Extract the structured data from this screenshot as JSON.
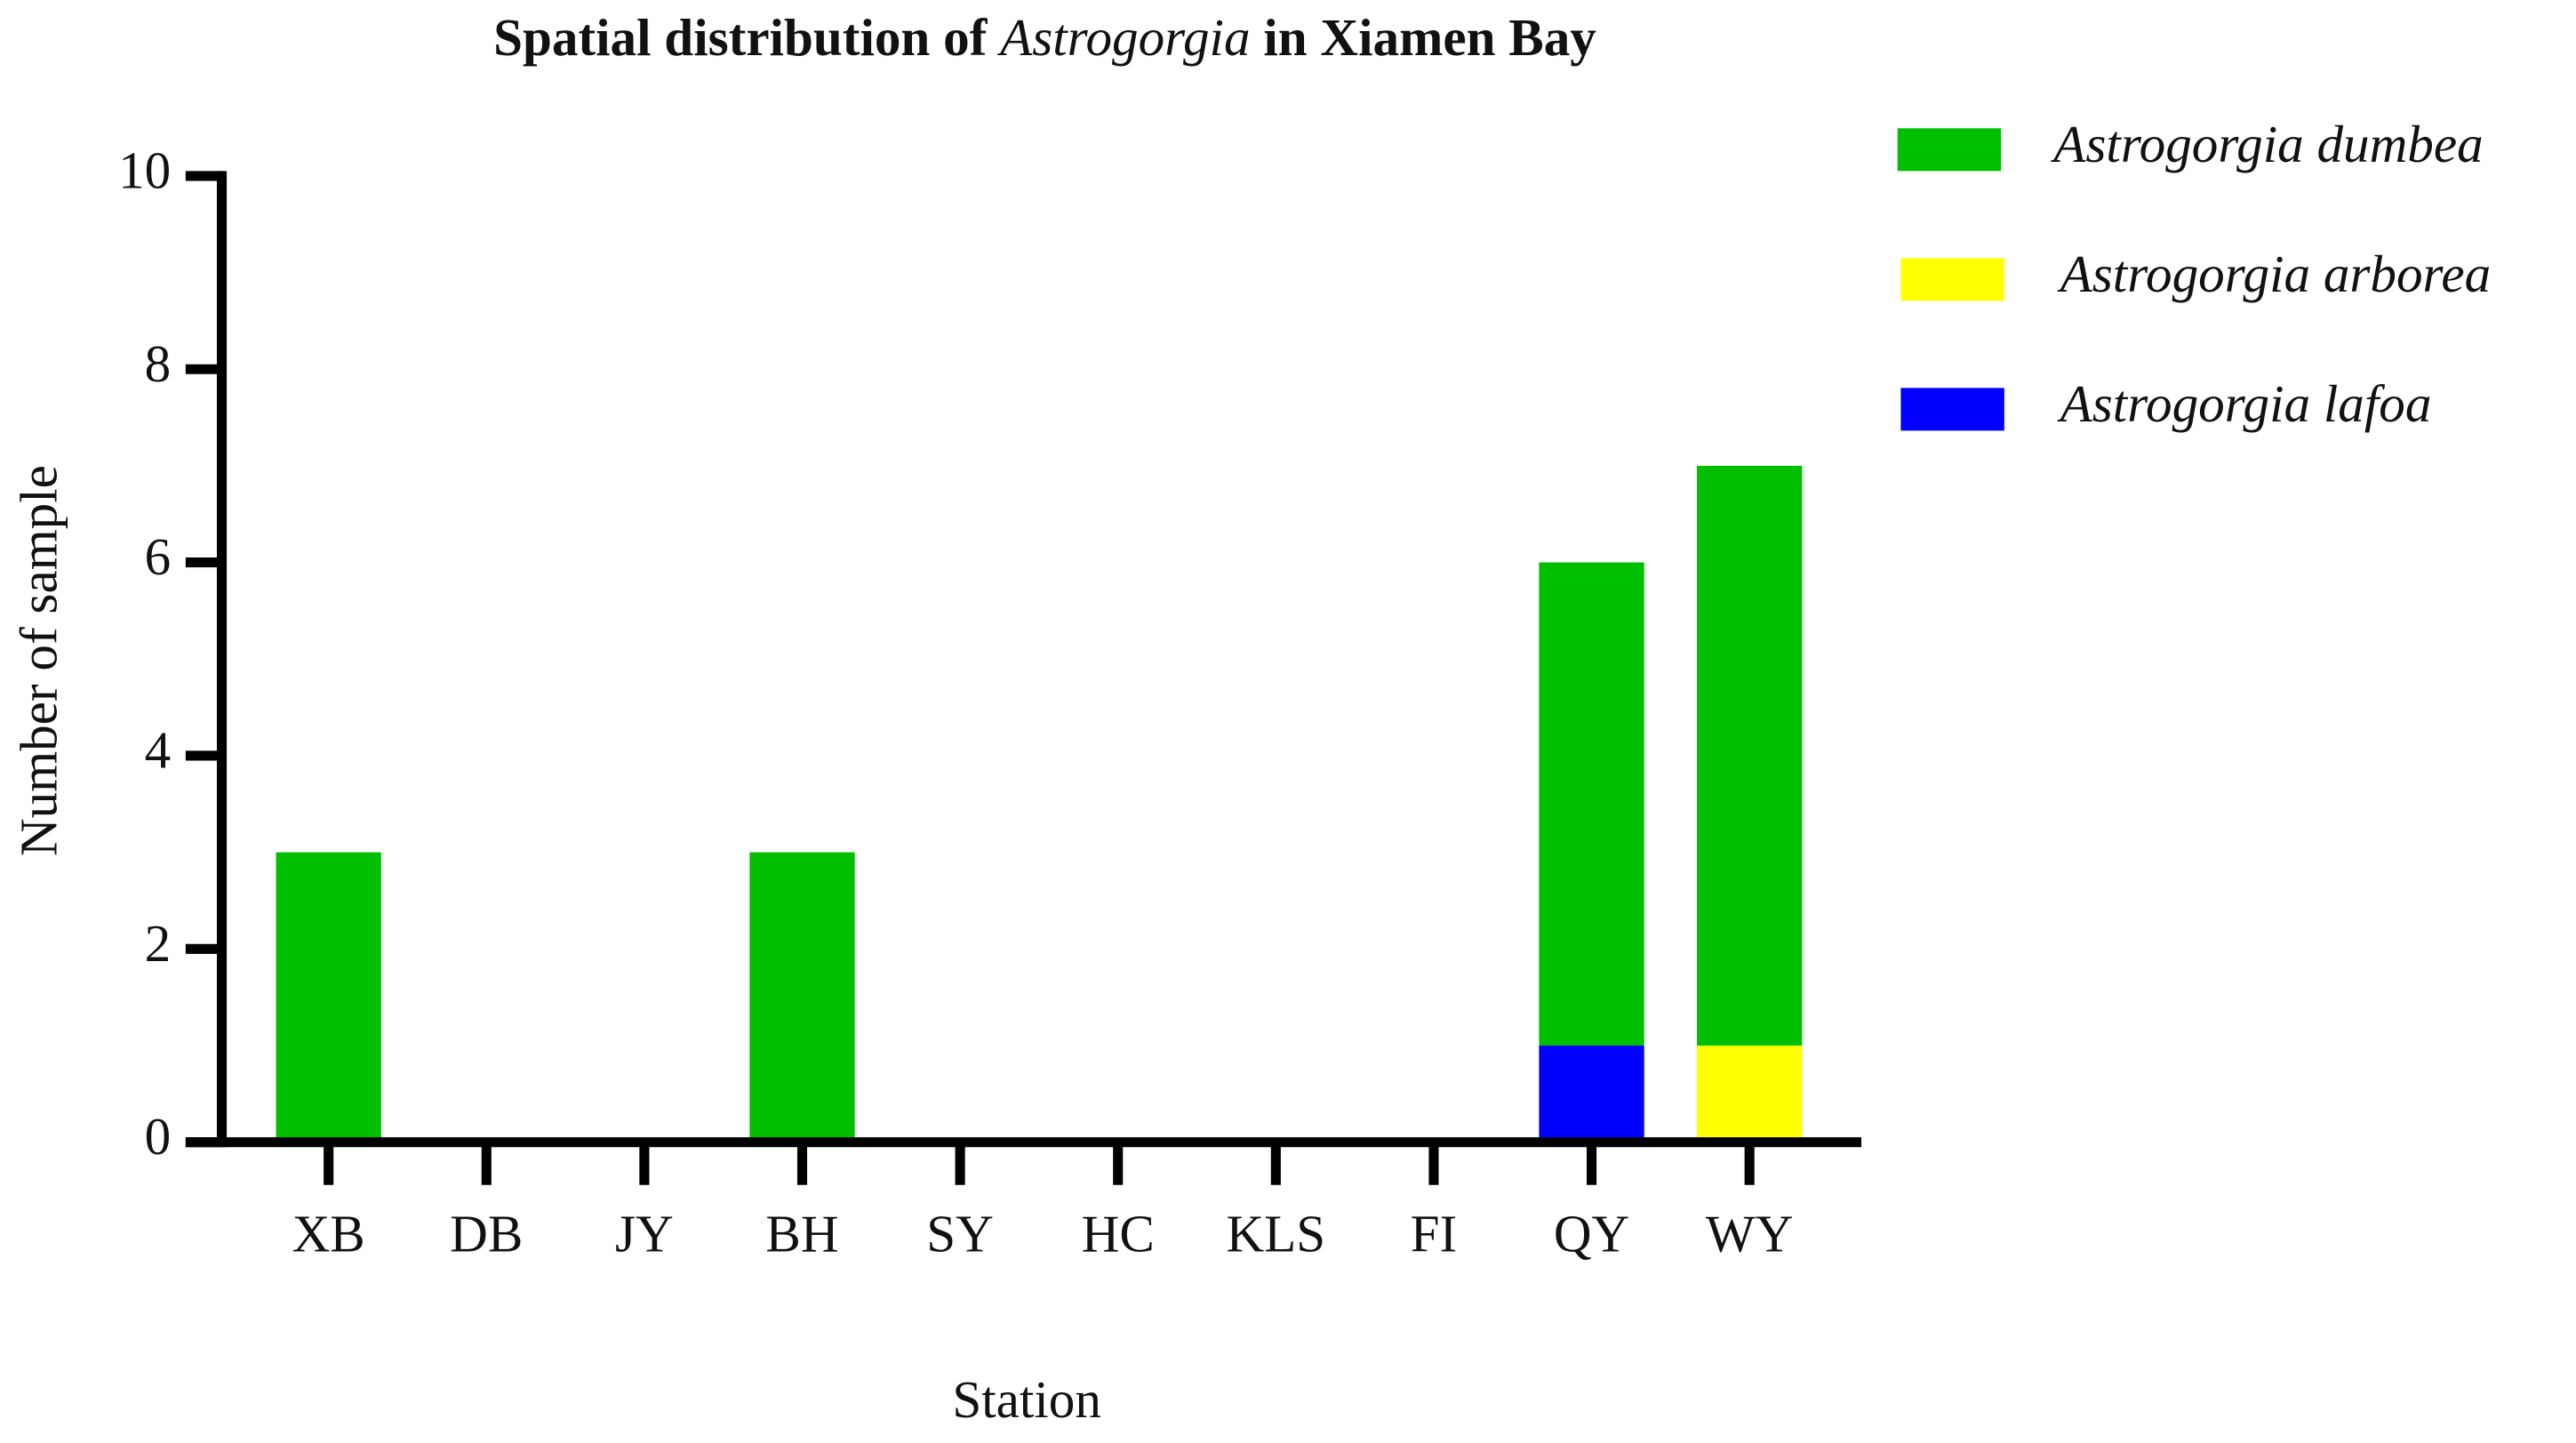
{
  "chart_data": {
    "type": "stacked_bar",
    "title": [
      "Spatial distribution of ",
      "Astrogorgia",
      " in Xiamen Bay"
    ],
    "x_label": "Station",
    "y_label": "Number of sample",
    "categories": [
      "XB",
      "DB",
      "JY",
      "BH",
      "SY",
      "HC",
      "KLS",
      "FI",
      "QY",
      "WY"
    ],
    "series": [
      {
        "name": "Astrogorgia dumbea",
        "color": "#00bf00",
        "values": [
          3,
          0,
          0,
          3,
          0,
          0,
          0,
          0,
          5,
          6
        ]
      },
      {
        "name": "Astrogorgia arborea",
        "color": "#ffff00",
        "values": [
          0,
          0,
          0,
          0,
          0,
          0,
          0,
          0,
          0,
          1
        ]
      },
      {
        "name": "Astrogorgia lafoa",
        "color": "#0000ff",
        "values": [
          0,
          0,
          0,
          0,
          0,
          0,
          0,
          0,
          1,
          0
        ]
      }
    ],
    "ylim": [
      0,
      10
    ],
    "yticks": [
      0,
      2,
      4,
      6,
      8,
      10
    ],
    "grid": false,
    "legend": "right"
  }
}
